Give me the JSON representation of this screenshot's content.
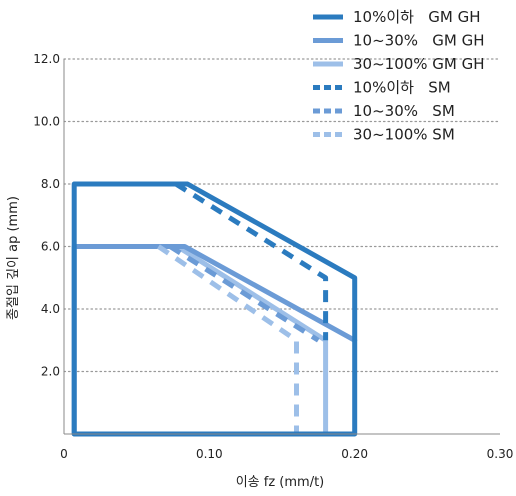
{
  "chart_data": {
    "type": "line",
    "title": "",
    "xlabel": "이송 fz (mm/t)",
    "ylabel": "종절입 깊이 ap (mm)",
    "xlim": [
      0,
      0.3
    ],
    "ylim": [
      0,
      12.0
    ],
    "x_ticks": [
      0,
      0.1,
      0.2,
      0.3
    ],
    "x_tick_labels": [
      "0",
      "0.10",
      "0.20",
      "0.30"
    ],
    "y_ticks": [
      2.0,
      4.0,
      6.0,
      8.0,
      10.0,
      12.0
    ],
    "y_tick_labels": [
      "2.0",
      "4.0",
      "6.0",
      "8.0",
      "10.0",
      "12.0"
    ],
    "grid": "horizontal-dotted",
    "legend_position": "top-right",
    "series": [
      {
        "name": "10%이하   GM GH",
        "color": "#2b7bbf",
        "dash": "solid",
        "points": [
          [
            0.007,
            0
          ],
          [
            0.007,
            8.0
          ],
          [
            0.085,
            8.0
          ],
          [
            0.2,
            5.0
          ],
          [
            0.2,
            0
          ],
          [
            0.007,
            0
          ]
        ]
      },
      {
        "name": "10~30%   GM GH",
        "color": "#6b9bd6",
        "dash": "solid",
        "points": [
          [
            0.007,
            0
          ],
          [
            0.007,
            6.0
          ],
          [
            0.083,
            6.0
          ],
          [
            0.2,
            3.0
          ]
        ]
      },
      {
        "name": "30~100% GM GH",
        "color": "#9dbfe8",
        "dash": "solid",
        "points": [
          [
            0.007,
            6.0
          ],
          [
            0.078,
            6.0
          ],
          [
            0.18,
            3.0
          ],
          [
            0.18,
            0
          ]
        ]
      },
      {
        "name": "10%이하   SM",
        "color": "#2b7bbf",
        "dash": "dashed",
        "points": [
          [
            0.077,
            8.0
          ],
          [
            0.18,
            5.0
          ],
          [
            0.18,
            3.0
          ]
        ]
      },
      {
        "name": "10~30%   SM",
        "color": "#6b9bd6",
        "dash": "dashed",
        "points": [
          [
            0.073,
            6.0
          ],
          [
            0.175,
            3.0
          ]
        ]
      },
      {
        "name": "30~100% SM",
        "color": "#9dbfe8",
        "dash": "dashed",
        "points": [
          [
            0.065,
            6.0
          ],
          [
            0.16,
            3.0
          ],
          [
            0.16,
            0
          ]
        ]
      }
    ]
  }
}
